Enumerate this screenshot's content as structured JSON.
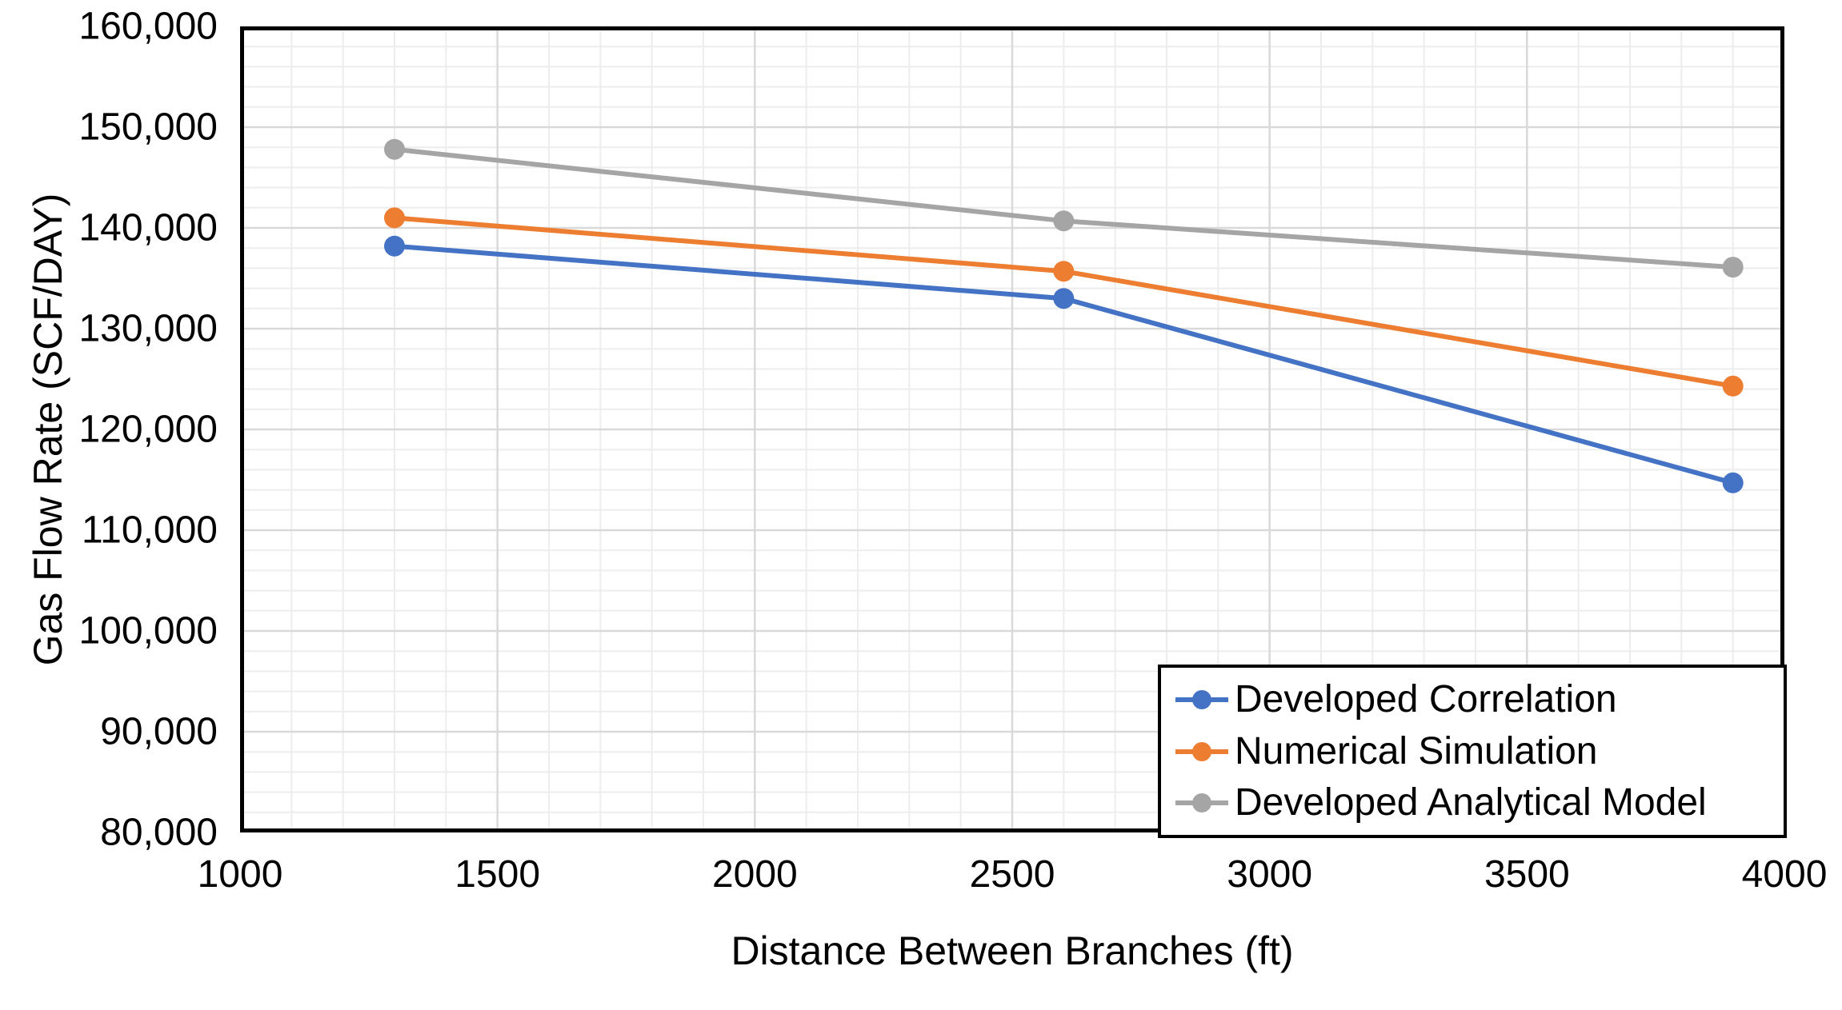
{
  "chart_data": {
    "type": "line",
    "title": "",
    "xlabel": "Distance Between Branches (ft)",
    "ylabel": "Gas Flow Rate (SCF/DAY)",
    "x": [
      1300,
      2600,
      3900
    ],
    "series": [
      {
        "name": "Developed Correlation",
        "color": "#4472C4",
        "values": [
          138200,
          133000,
          114700
        ]
      },
      {
        "name": "Numerical Simulation",
        "color": "#ED7D31",
        "values": [
          141000,
          135700,
          124300
        ]
      },
      {
        "name": "Developed Analytical Model",
        "color": "#A5A5A5",
        "values": [
          147800,
          140700,
          136100
        ]
      }
    ],
    "xlim": [
      1000,
      4000
    ],
    "ylim": [
      80000,
      160000
    ],
    "x_ticks": [
      1000,
      1500,
      2000,
      2500,
      3000,
      3500,
      4000
    ],
    "x_tick_labels": [
      "1000",
      "1500",
      "2000",
      "2500",
      "3000",
      "3500",
      "4000"
    ],
    "y_ticks": [
      80000,
      90000,
      100000,
      110000,
      120000,
      130000,
      140000,
      150000,
      160000
    ],
    "y_tick_labels": [
      "80,000",
      "90,000",
      "100,000",
      "110,000",
      "120,000",
      "130,000",
      "140,000",
      "150,000",
      "160,000"
    ],
    "x_minor_step": 100,
    "x_major_step": 500,
    "y_minor_step": 2000,
    "y_major_step": 10000,
    "grid": {
      "minor": true,
      "major": true
    },
    "marker": "circle",
    "legend": {
      "position": "bottom-right",
      "border_color": "#000000",
      "entries": [
        "Developed Correlation",
        "Numerical Simulation",
        "Developed Analytical Model"
      ]
    },
    "colors": {
      "background": "#ffffff",
      "frame": "#000000",
      "minor_grid": "#EDEDED",
      "major_grid": "#D9D9D9",
      "text": "#000000"
    }
  }
}
